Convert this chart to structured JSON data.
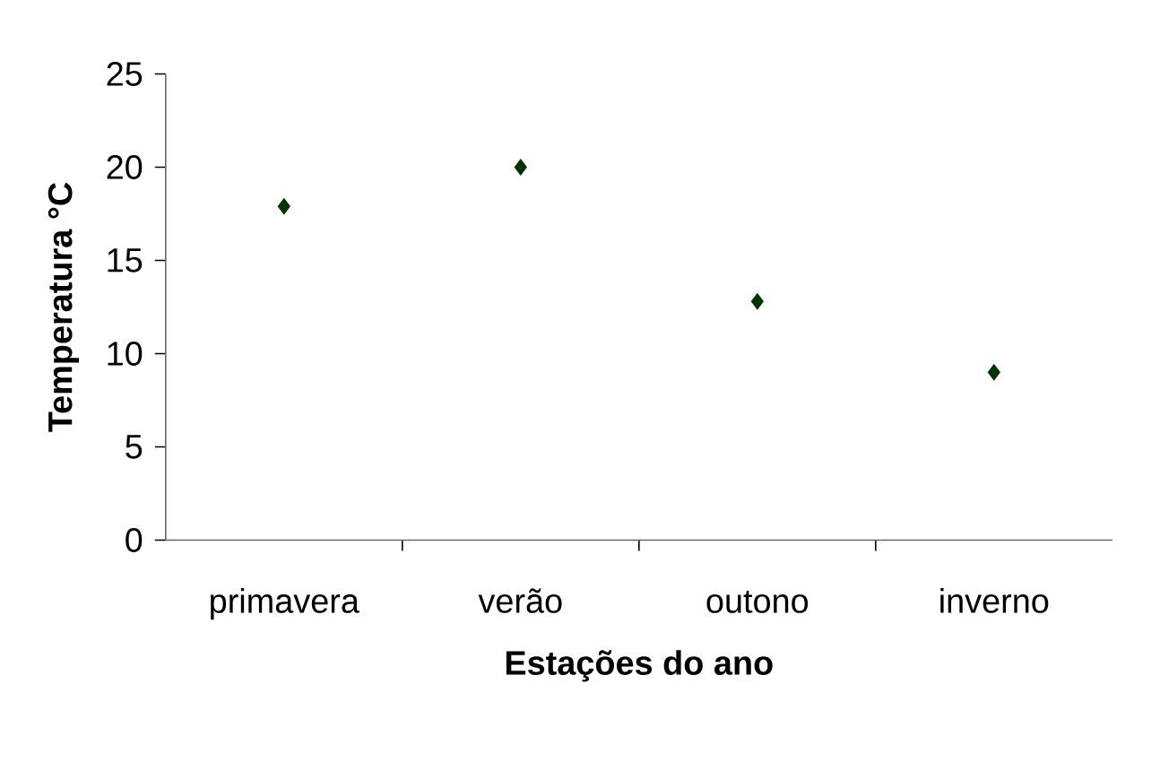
{
  "chart_data": {
    "type": "scatter",
    "xlabel": "Estações do ano",
    "ylabel": "Temperatura °C",
    "categories": [
      "primavera",
      "verão",
      "outono",
      "inverno"
    ],
    "series": [
      {
        "color": "#003300",
        "values": [
          17.9,
          20,
          12.8,
          9.0
        ]
      }
    ],
    "ylim": [
      0,
      25
    ],
    "yticks": [
      0,
      5,
      10,
      15,
      20,
      25
    ],
    "marker": "diamond",
    "grid": false,
    "legend": false
  }
}
